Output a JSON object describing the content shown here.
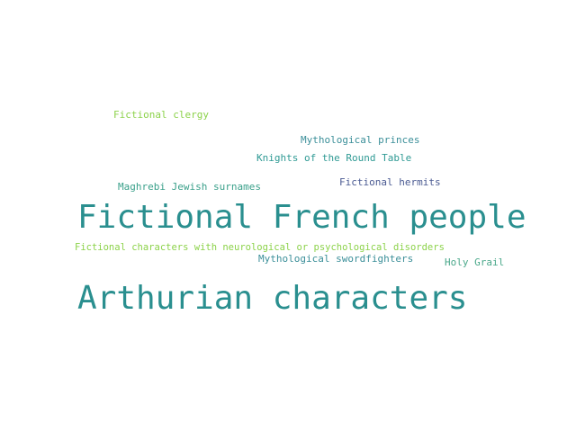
{
  "words": [
    {
      "text": "Arthurian characters",
      "color": "#2a8f8f"
    },
    {
      "text": "Fictional French people",
      "color": "#2a8f8f"
    },
    {
      "text": "Fictional characters with neurological or psychological disorders",
      "color": "#8cd24a"
    },
    {
      "text": "Fictional clergy",
      "color": "#8cd24a"
    },
    {
      "text": "Mythological princes",
      "color": "#3b8f99"
    },
    {
      "text": "Knights of the Round Table",
      "color": "#2f9a94"
    },
    {
      "text": "Maghrebi Jewish surnames",
      "color": "#3aa08a"
    },
    {
      "text": "Fictional hermits",
      "color": "#4a5a92"
    },
    {
      "text": "Mythological swordfighters",
      "color": "#3b8f99"
    },
    {
      "text": "Holy Grail",
      "color": "#4aa88a"
    }
  ]
}
